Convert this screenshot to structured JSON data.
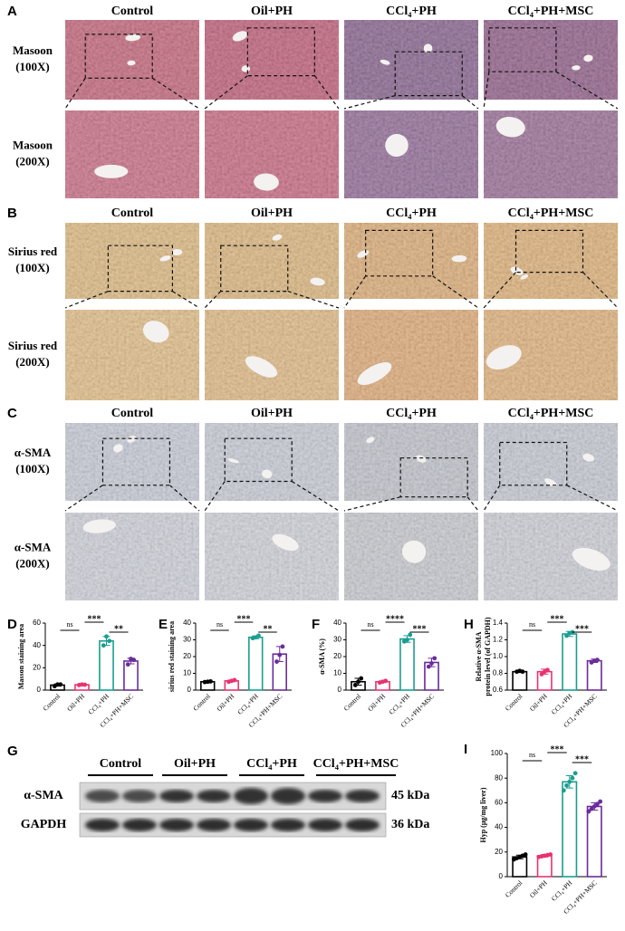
{
  "image_panels": [
    {
      "label": "A",
      "columns": [
        "Control",
        "Oil+PH",
        "CCl₄+PH",
        "CCl₄+PH+MSC"
      ],
      "rows": [
        [
          "Masoon",
          "(100X)"
        ],
        [
          "Masoon",
          "(200X)"
        ]
      ]
    },
    {
      "label": "B",
      "columns": [
        "Control",
        "Oil+PH",
        "CCl₄+PH",
        "CCl₄+PH+MSC"
      ],
      "rows": [
        [
          "Sirius red",
          "(100X)"
        ],
        [
          "Sirius red",
          "(200X)"
        ]
      ]
    },
    {
      "label": "C",
      "columns": [
        "Control",
        "Oil+PH",
        "CCl₄+PH",
        "CCl₄+PH+MSC"
      ],
      "rows": [
        [
          "α-SMA",
          "(100X)"
        ],
        [
          "α-SMA",
          "(200X)"
        ]
      ]
    }
  ],
  "blot": {
    "label": "G",
    "groups": [
      "Control",
      "Oil+PH",
      "CCl₄+PH",
      "CCl₄+PH+MSC"
    ],
    "rows": [
      [
        "α-SMA",
        "45 kDa"
      ],
      [
        "GAPDH",
        "36 kDa"
      ]
    ]
  },
  "chart_data": [
    {
      "type": "bar",
      "label": "D",
      "ylabel": [
        "Masson staining area"
      ],
      "categories": [
        "Control",
        "Oil+PH",
        "CCl₄+PH",
        "CCl₄+PH+MSC"
      ],
      "colors": [
        "#000000",
        "#e8336e",
        "#1a9e8f",
        "#6a2c9a"
      ],
      "values": [
        4.5,
        4.8,
        44,
        26
      ],
      "errors": [
        1,
        0.5,
        4,
        2.5
      ],
      "points": [
        [
          3.5,
          5,
          5
        ],
        [
          4.5,
          5,
          4.8
        ],
        [
          40,
          48,
          44
        ],
        [
          23,
          28,
          27
        ]
      ],
      "significance": [
        "ns",
        "***",
        "**"
      ],
      "ylim": [
        0,
        60
      ],
      "yticks": [
        0,
        20,
        40,
        60
      ]
    },
    {
      "type": "bar",
      "label": "E",
      "ylabel": [
        "sirius red staining area"
      ],
      "categories": [
        "Control",
        "Oil+PH",
        "CCl₄+PH",
        "CCl₄+PH+MSC"
      ],
      "colors": [
        "#000000",
        "#e8336e",
        "#1a9e8f",
        "#6a2c9a"
      ],
      "values": [
        5,
        5.5,
        31.5,
        21.5
      ],
      "errors": [
        0.3,
        0.5,
        0.8,
        4.5
      ],
      "points": [
        [
          4.8,
          5,
          5.2
        ],
        [
          5,
          5.5,
          6
        ],
        [
          31,
          31.5,
          32.5
        ],
        [
          17,
          21,
          26
        ]
      ],
      "significance": [
        "ns",
        "***",
        "**"
      ],
      "ylim": [
        0,
        40
      ],
      "yticks": [
        0,
        10,
        20,
        30,
        40
      ]
    },
    {
      "type": "bar",
      "label": "F",
      "ylabel": [
        "α-SMA (%)"
      ],
      "categories": [
        "Control",
        "Oil+PH",
        "CCl₄+PH",
        "CCl₄+PH+MSC"
      ],
      "colors": [
        "#000000",
        "#e8336e",
        "#1a9e8f",
        "#6a2c9a"
      ],
      "values": [
        5,
        5,
        30.5,
        16.5
      ],
      "errors": [
        2,
        0.5,
        2,
        2.5
      ],
      "points": [
        [
          3,
          5,
          7
        ],
        [
          4.5,
          5,
          5.5
        ],
        [
          29,
          30,
          33
        ],
        [
          14,
          16,
          19
        ]
      ],
      "significance": [
        "ns",
        "****",
        "***"
      ],
      "ylim": [
        0,
        40
      ],
      "yticks": [
        0,
        10,
        20,
        30,
        40
      ]
    },
    {
      "type": "bar",
      "label": "H",
      "ylabel": [
        "Relative α-SMA",
        "protein level (of GAPDH)"
      ],
      "categories": [
        "Control",
        "Oil+PH",
        "CCl₄+PH",
        "CCl₄+PH+MSC"
      ],
      "colors": [
        "#000000",
        "#e8336e",
        "#1a9e8f",
        "#6a2c9a"
      ],
      "values": [
        0.82,
        0.82,
        1.27,
        0.95
      ],
      "errors": [
        0.01,
        0.03,
        0.03,
        0.02
      ],
      "points": [
        [
          0.82,
          0.83,
          0.82
        ],
        [
          0.79,
          0.82,
          0.84
        ],
        [
          1.25,
          1.28,
          1.29
        ],
        [
          0.93,
          0.95,
          0.96
        ]
      ],
      "significance": [
        "ns",
        "***",
        "***"
      ],
      "ylim": [
        0.6,
        1.4
      ],
      "yticks": [
        0.6,
        0.8,
        {
          "value": 1,
          "label": "1.0"
        },
        1.2,
        1.4
      ]
    },
    {
      "type": "bar",
      "label": "I",
      "ylabel": [
        "Hyp (μg/mg liver)"
      ],
      "categories": [
        "Control",
        "Oil+PH",
        "CCl₄+PH",
        "CCl₄+PH+MSC"
      ],
      "colors": [
        "#000000",
        "#e8336e",
        "#1a9e8f",
        "#6a2c9a"
      ],
      "values": [
        16,
        17,
        77,
        57
      ],
      "errors": [
        1.5,
        1,
        5,
        3
      ],
      "points": [
        [
          14,
          15,
          16,
          17,
          18
        ],
        [
          16,
          16.5,
          17,
          17.5,
          18
        ],
        [
          70,
          74,
          77,
          80,
          84
        ],
        [
          53,
          55,
          57,
          59,
          61
        ]
      ],
      "significance": [
        "ns",
        "***",
        "***"
      ],
      "ylim": [
        0,
        100
      ],
      "yticks": [
        0,
        20,
        40,
        60,
        80,
        100
      ]
    }
  ]
}
